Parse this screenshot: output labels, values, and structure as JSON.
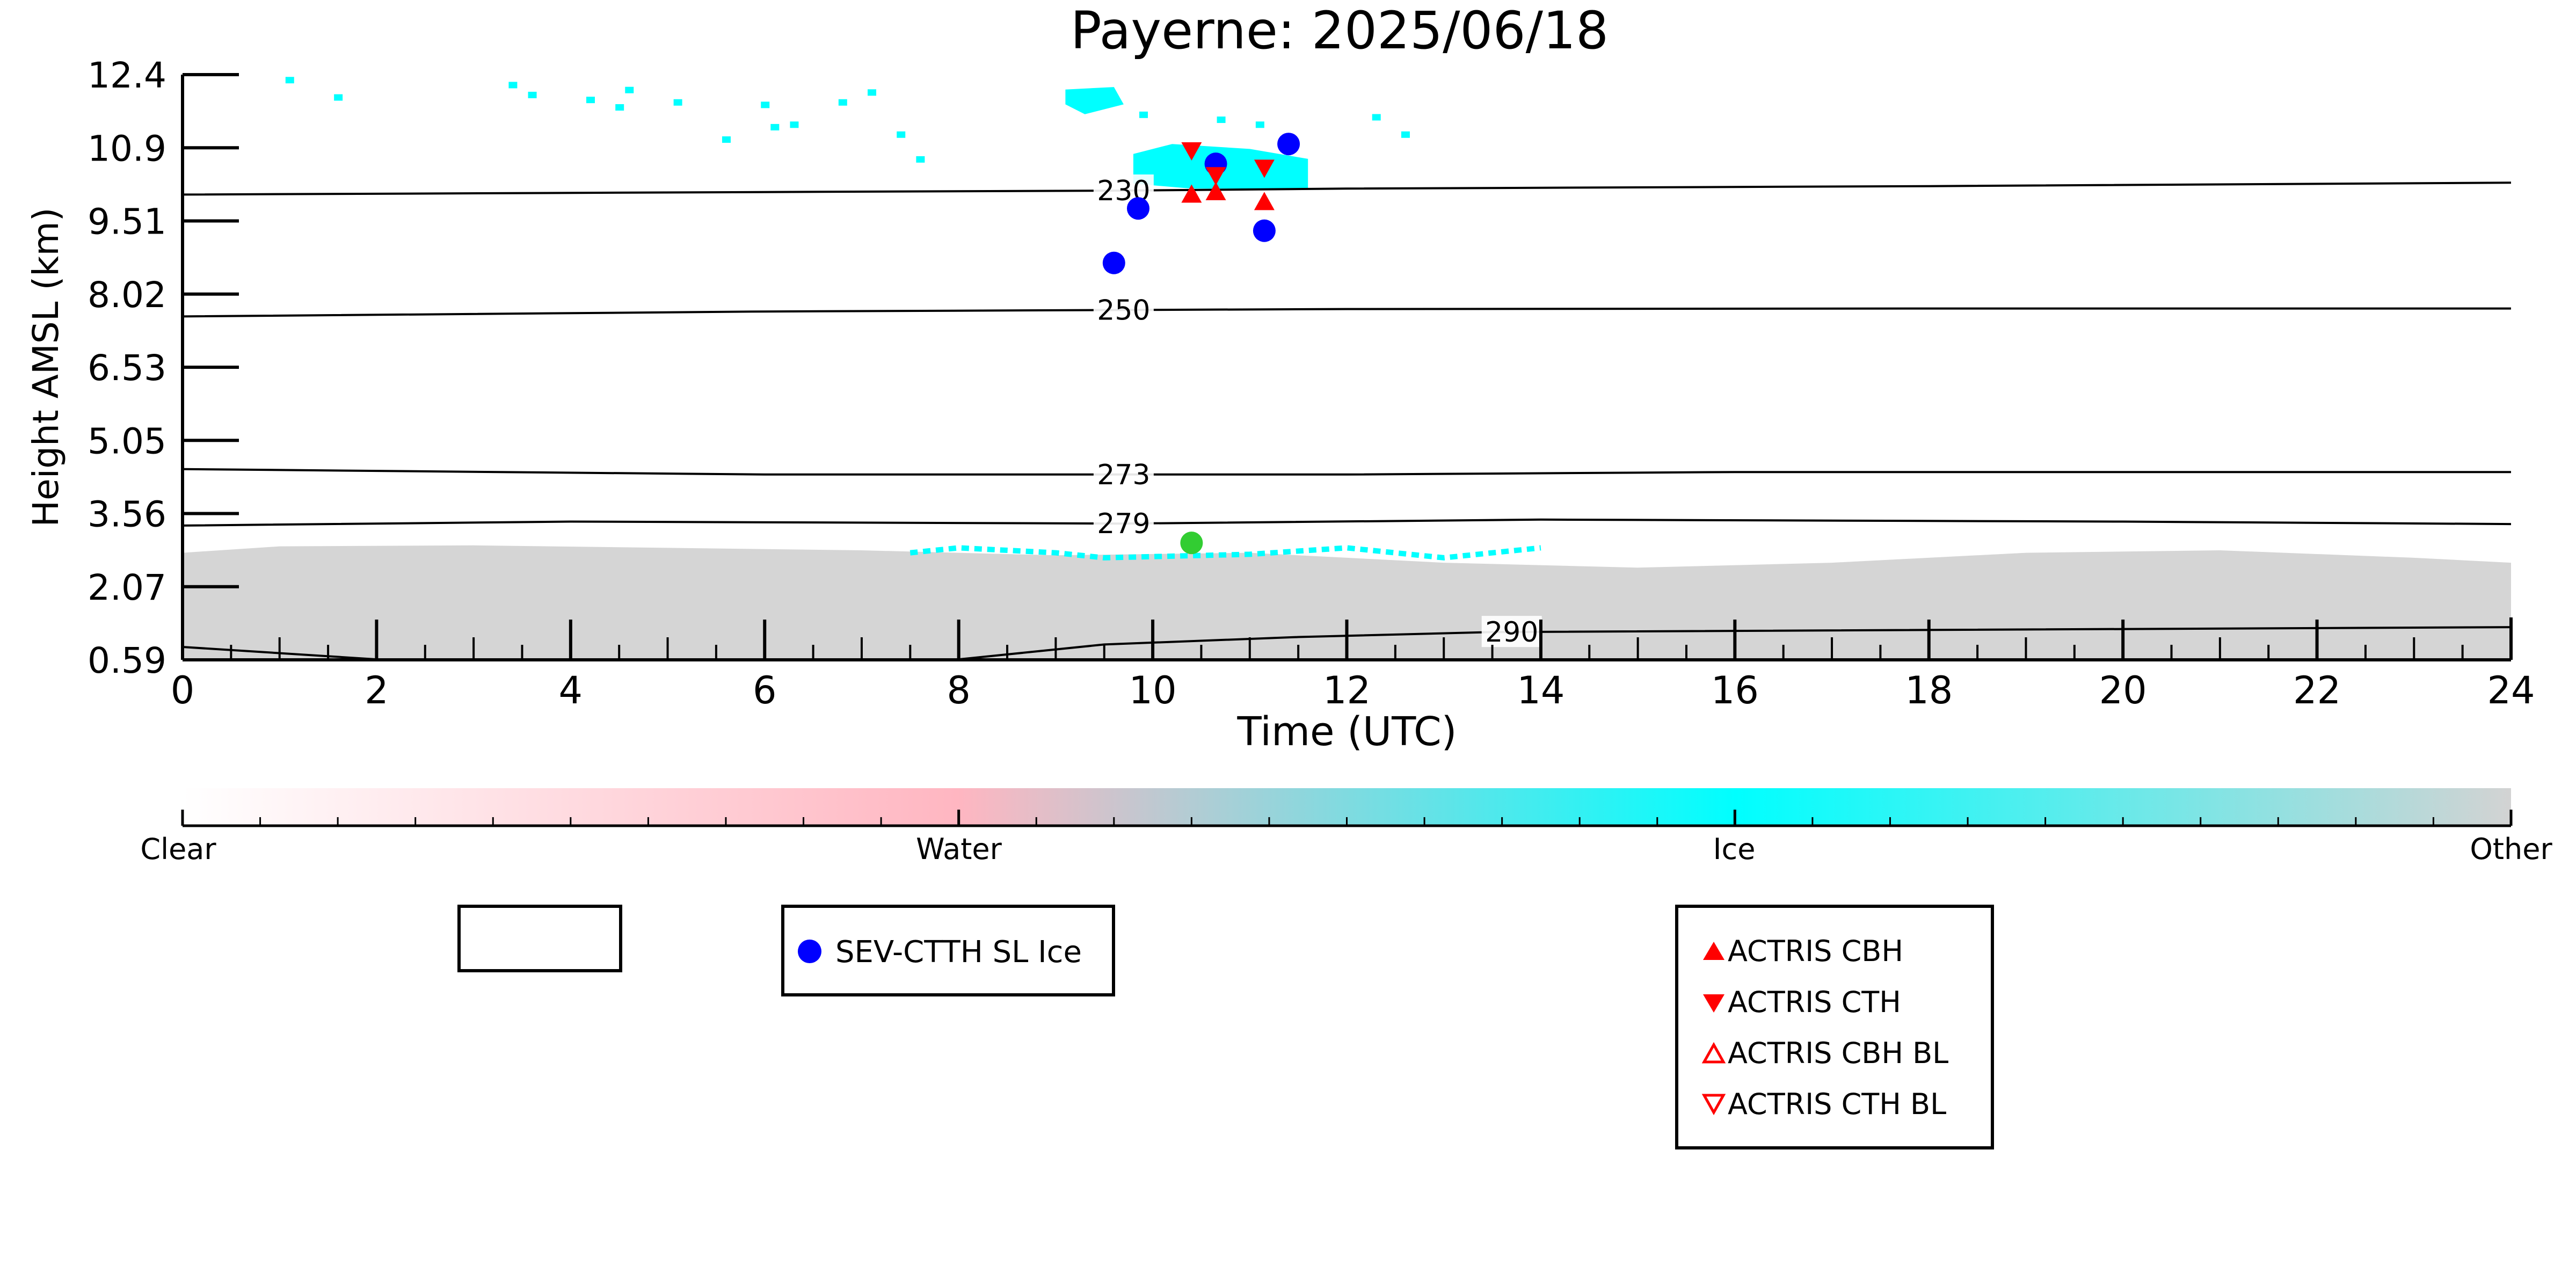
{
  "chart_data": {
    "type": "scatter",
    "title": "Payerne: 2025/06/18",
    "xlabel": "Time (UTC)",
    "ylabel": "Height AMSL (km)",
    "xlim": [
      0,
      24
    ],
    "ylim": [
      0.59,
      12.4
    ],
    "x_ticks": [
      "0",
      "2",
      "4",
      "6",
      "8",
      "10",
      "12",
      "14",
      "16",
      "18",
      "20",
      "22",
      "24"
    ],
    "y_ticks": [
      "0.59",
      "2.07",
      "3.56",
      "5.05",
      "6.53",
      "8.02",
      "9.51",
      "10.9",
      "12.4"
    ],
    "colorbar": {
      "labels": [
        "Clear",
        "Water",
        "Ice",
        "Other"
      ],
      "colors": [
        "#ffffff",
        "#ffb6c1",
        "#00ffff",
        "#d3d3d3"
      ]
    },
    "isotherms": [
      {
        "label": "230",
        "label_x": 9.7,
        "points": [
          [
            0,
            9.98
          ],
          [
            6,
            10.03
          ],
          [
            9.7,
            10.06
          ],
          [
            12,
            10.1
          ],
          [
            18,
            10.15
          ],
          [
            24,
            10.22
          ]
        ]
      },
      {
        "label": "250",
        "label_x": 9.7,
        "points": [
          [
            0,
            7.52
          ],
          [
            6,
            7.62
          ],
          [
            9.7,
            7.65
          ],
          [
            12,
            7.67
          ],
          [
            18,
            7.68
          ],
          [
            24,
            7.68
          ]
        ]
      },
      {
        "label": "273",
        "label_x": 9.7,
        "points": [
          [
            0,
            4.44
          ],
          [
            6,
            4.33
          ],
          [
            9.7,
            4.33
          ],
          [
            12,
            4.33
          ],
          [
            16,
            4.38
          ],
          [
            20,
            4.38
          ],
          [
            24,
            4.38
          ]
        ]
      },
      {
        "label": "279",
        "label_x": 9.7,
        "points": [
          [
            0,
            3.3
          ],
          [
            4,
            3.38
          ],
          [
            9.7,
            3.34
          ],
          [
            14,
            3.42
          ],
          [
            20,
            3.38
          ],
          [
            24,
            3.33
          ]
        ]
      },
      {
        "label": "290",
        "label_x": 13.7,
        "points": [
          [
            0,
            0.85
          ],
          [
            2,
            0.6
          ],
          [
            8,
            0.6
          ],
          [
            9.5,
            0.9
          ],
          [
            11.5,
            1.05
          ],
          [
            13.5,
            1.15
          ],
          [
            24,
            1.25
          ]
        ]
      }
    ],
    "regions": {
      "other_color": "#d3d3d3",
      "ice_color": "#00ffff",
      "other_layer_top": [
        [
          0,
          2.75
        ],
        [
          1,
          2.88
        ],
        [
          3,
          2.9
        ],
        [
          5,
          2.85
        ],
        [
          7,
          2.8
        ],
        [
          9,
          2.7
        ],
        [
          11,
          2.75
        ],
        [
          13,
          2.55
        ],
        [
          15,
          2.45
        ],
        [
          17,
          2.55
        ],
        [
          19,
          2.75
        ],
        [
          21,
          2.8
        ],
        [
          23,
          2.65
        ],
        [
          24,
          2.55
        ]
      ],
      "ice_main": [
        [
          9.8,
          10.8
        ],
        [
          10.2,
          11.0
        ],
        [
          11.0,
          10.9
        ],
        [
          11.6,
          10.7
        ],
        [
          11.6,
          10.1
        ],
        [
          10.4,
          10.1
        ],
        [
          9.8,
          10.2
        ]
      ],
      "ice_top_cluster": [
        [
          9.1,
          12.1
        ],
        [
          9.6,
          12.15
        ],
        [
          9.7,
          11.8
        ],
        [
          9.3,
          11.6
        ],
        [
          9.1,
          11.8
        ]
      ],
      "ice_specks": [
        [
          1.1,
          12.3
        ],
        [
          1.6,
          11.95
        ],
        [
          3.4,
          12.2
        ],
        [
          3.6,
          12.0
        ],
        [
          4.2,
          11.9
        ],
        [
          4.5,
          11.75
        ],
        [
          5.1,
          11.85
        ],
        [
          6.0,
          11.8
        ],
        [
          6.1,
          11.35
        ],
        [
          6.3,
          11.4
        ],
        [
          6.8,
          11.85
        ],
        [
          7.1,
          12.05
        ],
        [
          7.4,
          11.2
        ],
        [
          7.6,
          10.7
        ],
        [
          9.9,
          11.6
        ],
        [
          10.7,
          11.5
        ],
        [
          11.1,
          11.4
        ],
        [
          12.3,
          11.55
        ],
        [
          12.6,
          11.2
        ],
        [
          5.6,
          11.1
        ],
        [
          4.6,
          12.1
        ]
      ],
      "ice_low_band": [
        [
          7.5,
          2.75
        ],
        [
          8.0,
          2.85
        ],
        [
          9.0,
          2.75
        ],
        [
          9.5,
          2.65
        ],
        [
          11.0,
          2.72
        ],
        [
          12.0,
          2.85
        ],
        [
          13.0,
          2.65
        ],
        [
          14.0,
          2.85
        ]
      ]
    },
    "series": [
      {
        "name": "SEV-CTTH SL Ice",
        "marker": "circle",
        "color": "#0000ff",
        "x": [
          9.6,
          9.85,
          10.65,
          11.15,
          11.4
        ],
        "y": [
          8.6,
          9.7,
          10.6,
          9.25,
          11.0
        ]
      },
      {
        "name": "ACTRIS CBH",
        "marker": "triangle-up",
        "color": "#ff0000",
        "x": [
          10.4,
          10.65,
          11.15
        ],
        "y": [
          10.0,
          10.05,
          9.85
        ]
      },
      {
        "name": "ACTRIS CTH",
        "marker": "triangle-down",
        "color": "#ff0000",
        "x": [
          10.4,
          10.65,
          11.15
        ],
        "y": [
          10.85,
          10.35,
          10.5
        ]
      },
      {
        "name": "ACTRIS CBH BL",
        "marker": "triangle-up-open",
        "color": "#ff0000",
        "x": [],
        "y": []
      },
      {
        "name": "ACTRIS CTH BL",
        "marker": "triangle-down-open",
        "color": "#ff0000",
        "x": [],
        "y": []
      },
      {
        "name": "",
        "marker": "circle",
        "color": "#32cd32",
        "x": [
          10.4
        ],
        "y": [
          2.95
        ]
      }
    ],
    "legend_boxes": [
      {
        "entries": []
      },
      {
        "entries": [
          "SEV-CTTH SL Ice"
        ]
      },
      {
        "entries": [
          "ACTRIS CBH",
          "ACTRIS CTH",
          "ACTRIS CBH BL",
          "ACTRIS CTH BL"
        ]
      }
    ]
  }
}
